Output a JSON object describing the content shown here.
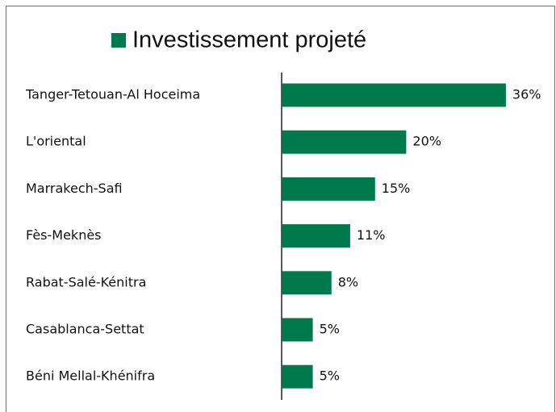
{
  "chart_data": {
    "type": "bar",
    "orientation": "horizontal",
    "series": [
      {
        "name": "Investissement projeté",
        "color": "#007a4d",
        "values": [
          36,
          20,
          15,
          11,
          8,
          5,
          5
        ],
        "value_labels": [
          "36%",
          "20%",
          "15%",
          "11%",
          "8%",
          "5%",
          "5%"
        ]
      }
    ],
    "categories": [
      "Tanger-Tetouan-Al Hoceima",
      "L'oriental",
      "Marrakech-Safi",
      "Fès-Meknès",
      "Rabat-Salé-Kénitra",
      "Casablanca-Settat",
      "Béni Mellal-Khénifra"
    ]
  }
}
